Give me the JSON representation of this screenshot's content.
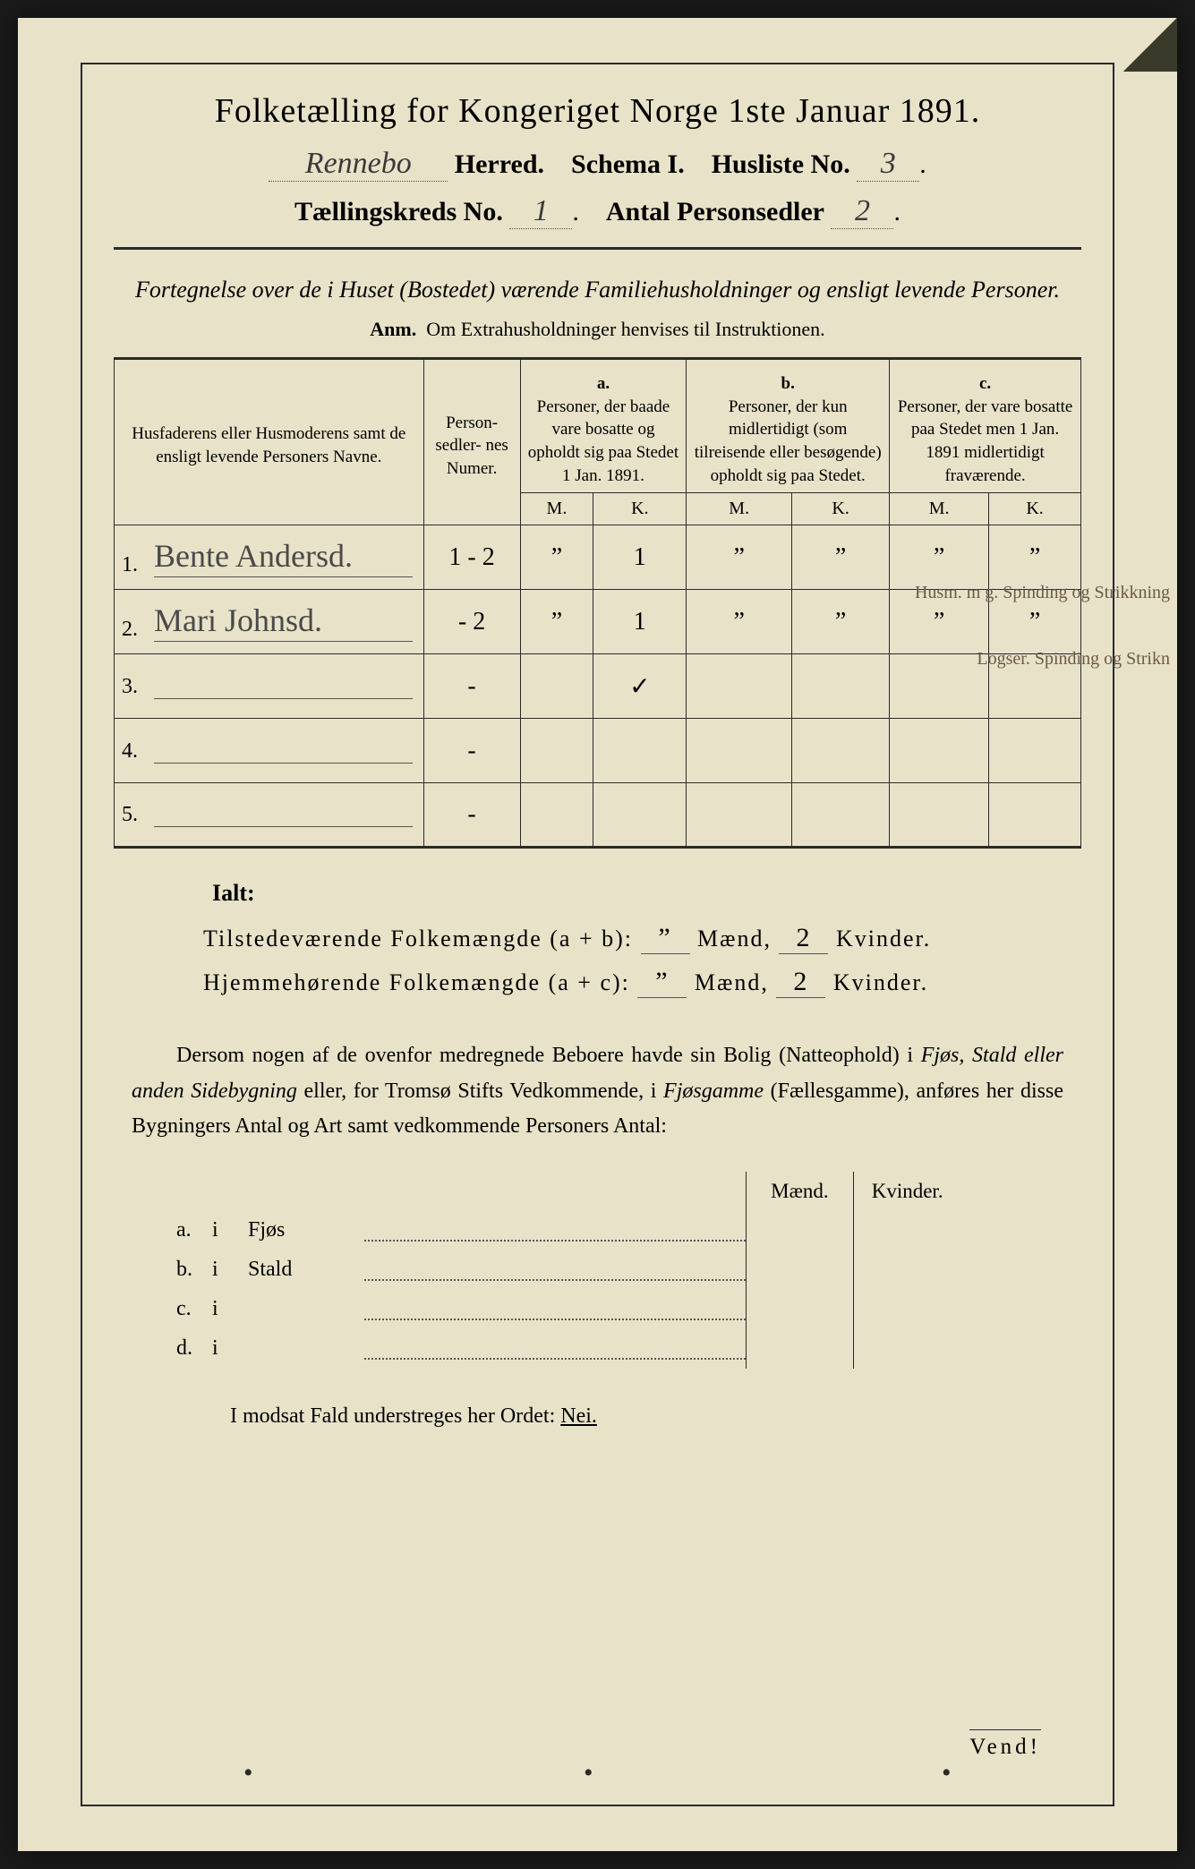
{
  "colors": {
    "paper": "#e8e2c8",
    "ink": "#2a2a2a",
    "handwriting": "#4a4a4a",
    "margin_note": "#6a5a4a",
    "background": "#1a1a1a"
  },
  "title": "Folketælling for Kongeriget Norge 1ste Januar 1891.",
  "header": {
    "herred_value": "Rennebo",
    "herred_label": "Herred.",
    "schema_label": "Schema I.",
    "husliste_label": "Husliste No.",
    "husliste_value": "3",
    "kreds_label": "Tællingskreds No.",
    "kreds_value": "1",
    "antal_label": "Antal Personsedler",
    "antal_value": "2"
  },
  "subtitle": "Fortegnelse over de i Huset (Bostedet) værende Familiehusholdninger og ensligt levende Personer.",
  "anm_label": "Anm.",
  "anm_text": "Om Extrahusholdninger henvises til Instruktionen.",
  "table": {
    "col_names": "Husfaderens eller Husmoderens samt de ensligt levende Personers Navne.",
    "col_numer": "Person-\nsedler-\nnes\nNumer.",
    "col_a_label": "a.",
    "col_a_text": "Personer, der baade vare bosatte og opholdt sig paa Stedet 1 Jan. 1891.",
    "col_b_label": "b.",
    "col_b_text": "Personer, der kun midlertidigt (som tilreisende eller besøgende) opholdt sig paa Stedet.",
    "col_c_label": "c.",
    "col_c_text": "Personer, der vare bosatte paa Stedet men 1 Jan. 1891 midlertidigt fraværende.",
    "m_label": "M.",
    "k_label": "K.",
    "rows": [
      {
        "num": "1.",
        "name": "Bente Andersd.",
        "numer": "1 - 2",
        "a_m": "”",
        "a_k": "1",
        "b_m": "”",
        "b_k": "”",
        "c_m": "”",
        "c_k": "”",
        "note": "Husm. m g.\nSpinding og\nStrikkning"
      },
      {
        "num": "2.",
        "name": "Mari Johnsd.",
        "numer": "- 2",
        "a_m": "”",
        "a_k": "1",
        "b_m": "”",
        "b_k": "”",
        "c_m": "”",
        "c_k": "”",
        "note": "Logser.\nSpinding og Strikn"
      },
      {
        "num": "3.",
        "name": "",
        "numer": "-",
        "a_m": "",
        "a_k": "✓",
        "b_m": "",
        "b_k": "",
        "c_m": "",
        "c_k": "",
        "note": ""
      },
      {
        "num": "4.",
        "name": "",
        "numer": "-",
        "a_m": "",
        "a_k": "",
        "b_m": "",
        "b_k": "",
        "c_m": "",
        "c_k": "",
        "note": ""
      },
      {
        "num": "5.",
        "name": "",
        "numer": "-",
        "a_m": "",
        "a_k": "",
        "b_m": "",
        "b_k": "",
        "c_m": "",
        "c_k": "",
        "note": ""
      }
    ]
  },
  "ialt": {
    "heading": "Ialt:",
    "line1_label": "Tilstedeværende Folkemængde (a + b):",
    "line2_label": "Hjemmehørende Folkemængde (a + c):",
    "maend_label": "Mænd,",
    "kvinder_label": "Kvinder.",
    "line1_m": "”",
    "line1_k": "2",
    "line2_m": "”",
    "line2_k": "2"
  },
  "paragraph": "Dersom nogen af de ovenfor medregnede Beboere havde sin Bolig (Natteophold) i Fjøs, Stald eller anden Sidebygning eller, for Tromsø Stifts Vedkommende, i Fjøsgamme (Fællesgamme), anføres her disse Bygningers Antal og Art samt vedkommende Personers Antal:",
  "sidebyg": {
    "maend": "Mænd.",
    "kvinder": "Kvinder.",
    "rows": [
      {
        "letter": "a.",
        "i": "i",
        "label": "Fjøs"
      },
      {
        "letter": "b.",
        "i": "i",
        "label": "Stald"
      },
      {
        "letter": "c.",
        "i": "i",
        "label": ""
      },
      {
        "letter": "d.",
        "i": "i",
        "label": ""
      }
    ]
  },
  "modsat": "I modsat Fald understreges her Ordet:",
  "nei": "Nei.",
  "vend": "Vend!"
}
